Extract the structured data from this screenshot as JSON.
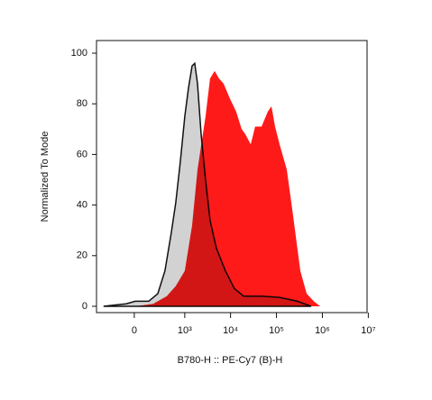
{
  "chart_data": {
    "type": "area",
    "x_label": "B780-H :: PE-Cy7 (B)-H",
    "y_label": "Normalized To Mode",
    "xscale": "asinh",
    "xlim": [
      -520,
      9400000
    ],
    "ylim": [
      -2.5,
      105
    ],
    "xticks": [
      0,
      {
        "value": 1000,
        "label": "10³"
      },
      {
        "value": 10000,
        "label": "10⁴"
      },
      {
        "value": 100000,
        "label": "10⁵"
      },
      {
        "value": 1000000,
        "label": "10⁶"
      },
      {
        "value": 10000000,
        "label": "10⁷"
      }
    ],
    "yticks": [
      0,
      20,
      40,
      60,
      80,
      100
    ],
    "series": [
      {
        "color": "#ff1a1a",
        "x": [
          7,
          176,
          392,
          632,
          1000,
          1450,
          1900,
          2850,
          3570,
          4500,
          5600,
          7060,
          9700,
          13200,
          17400,
          21000,
          27500,
          34300,
          47200,
          65000,
          77800,
          93300,
          117000,
          168000,
          229000,
          331000,
          453000,
          648000,
          894000
        ],
        "values": [
          0,
          1,
          4,
          8,
          14,
          32,
          54,
          75,
          90,
          93,
          90,
          88,
          82,
          77,
          70,
          68,
          64,
          71,
          71,
          77,
          79,
          71,
          64,
          54,
          36,
          14,
          5,
          2,
          0
        ]
      },
      {
        "color": "#d2d2d2",
        "x": [
          -357,
          -67,
          7,
          126,
          236,
          355,
          499,
          632,
          797,
          1000,
          1200,
          1450,
          1650,
          1900,
          2280,
          2850,
          3570,
          4900,
          7720,
          12100,
          19200,
          47200,
          117000,
          288000,
          566000
        ],
        "values": [
          0,
          1,
          2,
          2,
          5,
          14,
          29,
          41,
          57,
          75,
          86,
          95,
          96,
          88,
          68,
          50,
          34,
          23,
          14,
          7,
          4,
          4,
          3.5,
          2,
          0
        ]
      }
    ]
  }
}
